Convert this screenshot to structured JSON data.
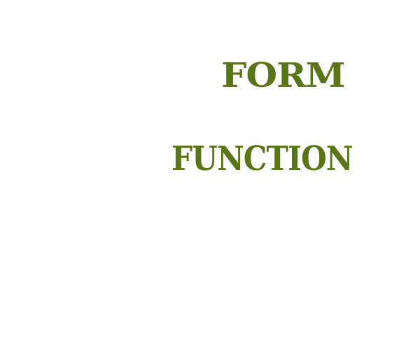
{
  "words": {
    "first": "FORM",
    "second": "FUNCTION"
  },
  "colors": {
    "text": "#5a7418",
    "background": "#ffffff"
  }
}
